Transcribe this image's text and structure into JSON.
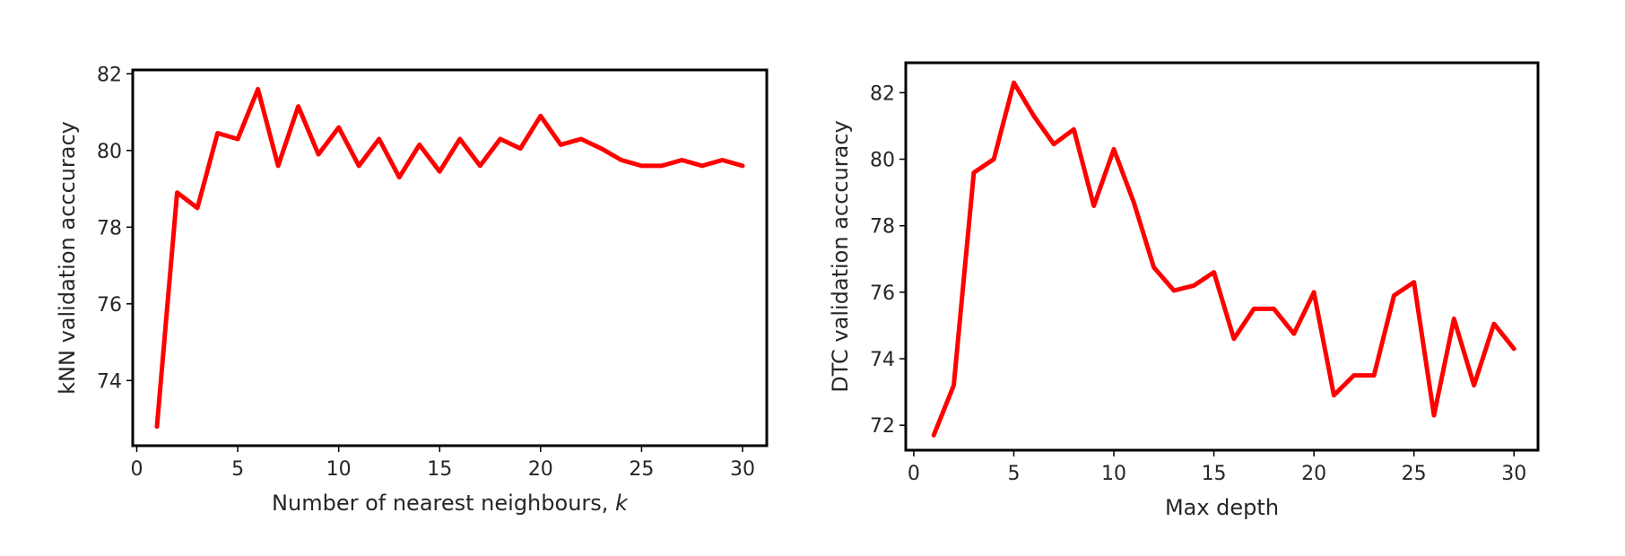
{
  "chart_data": [
    {
      "type": "line",
      "title": "",
      "xlabel": "Number of nearest neighbours, ",
      "xlabel_italic": "k",
      "ylabel": "kNN validation acccuracy",
      "xlim": [
        -0.2,
        31.2
      ],
      "ylim": [
        72.3,
        82.1
      ],
      "xticks": [
        0,
        5,
        10,
        15,
        20,
        25,
        30
      ],
      "yticks": [
        74,
        76,
        78,
        80,
        82
      ],
      "grid": false,
      "series": [
        {
          "color": "#ff0000",
          "x": [
            1,
            2,
            3,
            4,
            5,
            6,
            7,
            8,
            9,
            10,
            11,
            12,
            13,
            14,
            15,
            16,
            17,
            18,
            19,
            20,
            21,
            22,
            23,
            24,
            25,
            26,
            27,
            28,
            29,
            30
          ],
          "y": [
            72.8,
            78.9,
            78.5,
            80.45,
            80.3,
            81.6,
            79.6,
            81.15,
            79.9,
            80.6,
            79.6,
            80.3,
            79.3,
            80.15,
            79.45,
            80.3,
            79.6,
            80.3,
            80.05,
            80.9,
            80.15,
            80.3,
            80.05,
            79.75,
            79.6,
            79.6,
            79.75,
            79.6,
            79.75,
            79.6
          ]
        }
      ]
    },
    {
      "type": "line",
      "title": "",
      "xlabel": "Max depth",
      "ylabel": "DTC validation acccuracy",
      "xlim": [
        -0.4,
        31.2
      ],
      "ylim": [
        71.25,
        82.9
      ],
      "xticks": [
        0,
        5,
        10,
        15,
        20,
        25,
        30
      ],
      "yticks": [
        72,
        74,
        76,
        78,
        80,
        82
      ],
      "grid": false,
      "series": [
        {
          "color": "#ff0000",
          "x": [
            1,
            2,
            3,
            4,
            5,
            6,
            7,
            8,
            9,
            10,
            11,
            12,
            13,
            14,
            15,
            16,
            17,
            18,
            19,
            20,
            21,
            22,
            23,
            24,
            25,
            26,
            27,
            28,
            29,
            30
          ],
          "y": [
            71.7,
            73.2,
            79.6,
            80.0,
            82.3,
            81.3,
            80.45,
            80.9,
            78.6,
            80.3,
            78.7,
            76.75,
            76.05,
            76.2,
            76.6,
            74.6,
            75.5,
            75.5,
            74.75,
            76.0,
            72.9,
            73.5,
            73.5,
            75.9,
            76.3,
            72.3,
            75.2,
            73.2,
            75.05,
            74.3
          ]
        }
      ]
    }
  ]
}
